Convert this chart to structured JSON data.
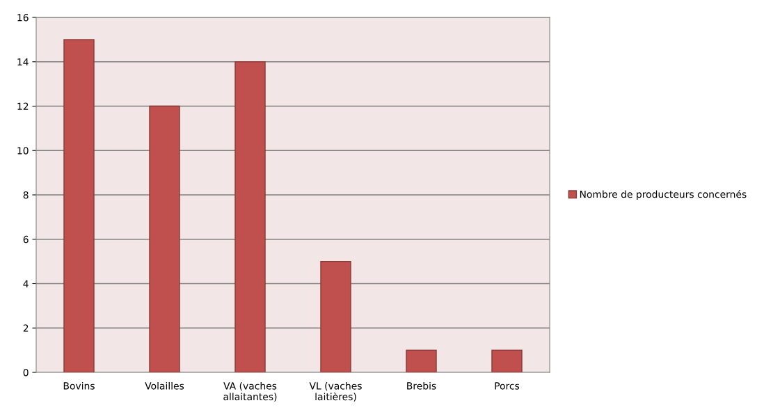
{
  "chart_data": {
    "type": "bar",
    "categories": [
      "Bovins",
      "Volailles",
      "VA (vaches\nallaitantes)",
      "VL (vaches\nlaitières)",
      "Brebis",
      "Porcs"
    ],
    "series": [
      {
        "name": "Nombre de producteurs concernés",
        "color": "#c0504d",
        "values": [
          15,
          12,
          14,
          5,
          1,
          1
        ]
      }
    ],
    "ylim": [
      0,
      16
    ],
    "yticks": [
      0,
      2,
      4,
      6,
      8,
      10,
      12,
      14,
      16
    ],
    "grid": "y",
    "legend": "right"
  }
}
